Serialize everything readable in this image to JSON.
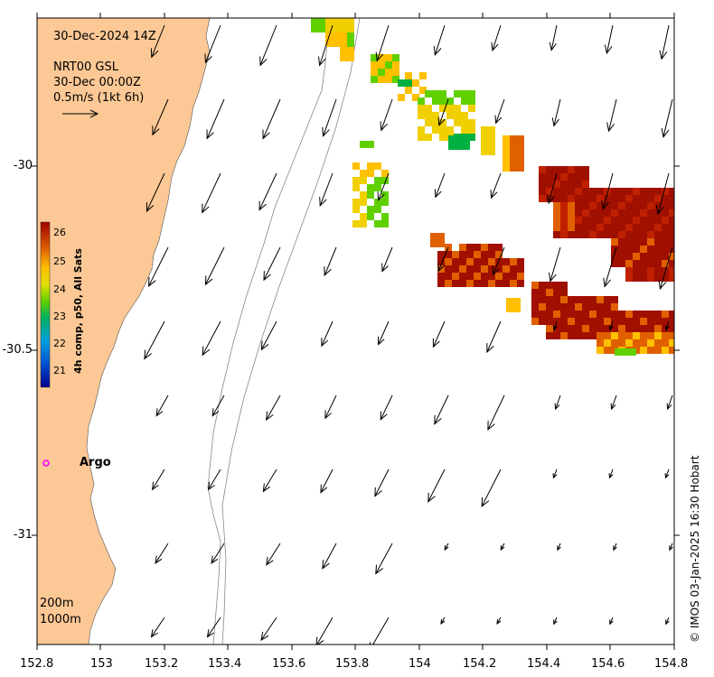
{
  "map": {
    "title_time": "30-Dec-2024 14Z",
    "product": "NRT00 GSL",
    "product_time": "30-Dec 00:00Z",
    "scale_label": "0.5m/s (1kt 6h)",
    "colorbar_label": "4h comp, p50, All Sats",
    "colorbar_ticks": [
      "26",
      "25",
      "24",
      "23",
      "22",
      "21"
    ],
    "argo_label": "Argo",
    "isobaths": [
      "200m",
      "1000m"
    ],
    "credit": "© IMOS 03-Jan-2025 16:30 Hobart",
    "x_ticks": [
      "152.8",
      "153",
      "153.2",
      "153.4",
      "153.6",
      "153.8",
      "154",
      "154.2",
      "154.4",
      "154.6",
      "154.8"
    ],
    "y_ticks": [
      "-30",
      "-30.5",
      "-31"
    ],
    "colors": {
      "land": "#fcc895",
      "argo": "#ff00ff",
      "warm": "#a01000",
      "hot": "#c03000"
    }
  },
  "chart_data": {
    "type": "map",
    "lon_range": [
      152.8,
      154.8
    ],
    "lat_range": [
      -31.3,
      -29.6
    ],
    "sst_range_c": [
      20.5,
      26.5
    ],
    "argo_float": {
      "lon": 152.83,
      "lat": -30.82
    },
    "sst_patches": [
      {
        "lon": 153.75,
        "lat": -29.65,
        "sst": 24.5
      },
      {
        "lon": 153.88,
        "lat": -29.72,
        "sst": 24.8
      },
      {
        "lon": 153.95,
        "lat": -29.8,
        "sst": 23.8
      },
      {
        "lon": 154.1,
        "lat": -29.85,
        "sst": 24.8
      },
      {
        "lon": 154.12,
        "lat": -29.95,
        "sst": 23.3
      },
      {
        "lon": 153.85,
        "lat": -30.05,
        "sst": 24.8
      },
      {
        "lon": 154.5,
        "lat": -30.1,
        "sst": 26.2
      },
      {
        "lon": 154.65,
        "lat": -30.2,
        "sst": 26.3
      },
      {
        "lon": 154.2,
        "lat": -30.3,
        "sst": 25.7
      },
      {
        "lon": 154.6,
        "lat": -30.45,
        "sst": 25.8
      }
    ]
  }
}
